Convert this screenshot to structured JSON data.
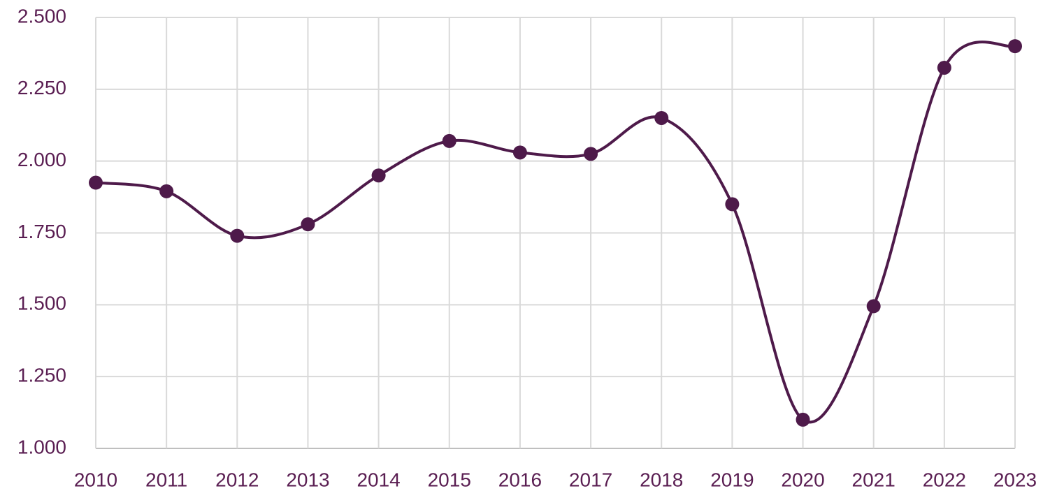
{
  "chart_data": {
    "type": "line",
    "categories": [
      "2010",
      "2011",
      "2012",
      "2013",
      "2014",
      "2015",
      "2016",
      "2017",
      "2018",
      "2019",
      "2020",
      "2021",
      "2022",
      "2023"
    ],
    "series": [
      {
        "color": "#4e1a4a",
        "values": [
          1925,
          1895,
          1740,
          1780,
          1950,
          2070,
          2030,
          2025,
          2150,
          1850,
          1100,
          1495,
          2325,
          2400
        ]
      }
    ],
    "ylim": [
      1000,
      2500
    ],
    "yticks": [
      {
        "value": 1000,
        "label": "1.000"
      },
      {
        "value": 1250,
        "label": "1.250"
      },
      {
        "value": 1500,
        "label": "1.500"
      },
      {
        "value": 1750,
        "label": "1.750"
      },
      {
        "value": 2000,
        "label": "2.000"
      },
      {
        "value": 2250,
        "label": "2.250"
      },
      {
        "value": 2500,
        "label": "2.500"
      }
    ],
    "grid": true,
    "smooth": true
  }
}
